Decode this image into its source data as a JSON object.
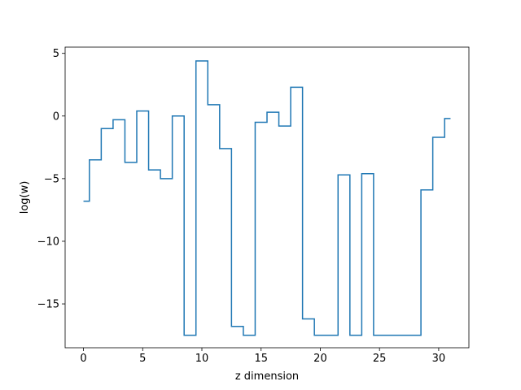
{
  "chart_data": {
    "type": "line",
    "drawstyle": "steps-mid",
    "xlabel": "z dimension",
    "ylabel": "log(w)",
    "xlim": [
      -1.55,
      32.55
    ],
    "ylim": [
      -18.5,
      5.5
    ],
    "xticks": [
      0,
      5,
      10,
      15,
      20,
      25,
      30
    ],
    "yticks": [
      5,
      0,
      -5,
      -10,
      -15
    ],
    "ytick_labels": [
      "5",
      "0",
      "−5",
      "−10",
      "−15"
    ],
    "grid": false,
    "color": "#1f77b4",
    "series": [
      {
        "x": [
          0,
          1,
          2,
          3,
          4,
          5,
          6,
          7,
          8,
          9,
          10,
          11,
          12,
          13,
          14,
          15,
          16,
          17,
          18,
          19,
          20,
          21,
          22,
          23,
          24,
          25,
          26,
          27,
          28,
          29,
          30,
          31
        ],
        "values": [
          -6.8,
          -3.5,
          -1.0,
          -0.3,
          -3.7,
          0.4,
          -4.3,
          -5.0,
          0.0,
          -17.5,
          4.4,
          0.9,
          -2.6,
          -16.8,
          -17.5,
          -0.5,
          0.3,
          -0.8,
          2.3,
          -16.2,
          -17.5,
          -17.5,
          -4.7,
          -17.5,
          -4.6,
          -17.5,
          -17.5,
          -17.5,
          -17.5,
          -5.9,
          -1.7,
          -0.2
        ]
      }
    ]
  }
}
